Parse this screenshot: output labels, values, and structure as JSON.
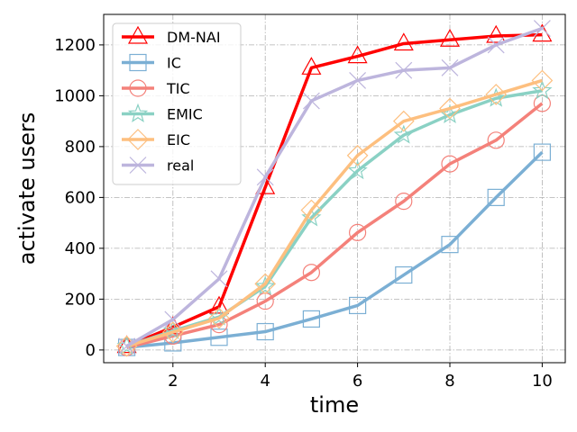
{
  "chart_data": {
    "type": "line",
    "title": "",
    "xlabel": "time",
    "ylabel": "activate users",
    "xlim": [
      0.5,
      10.5
    ],
    "ylim": [
      -50,
      1320
    ],
    "xticks": [
      2,
      4,
      6,
      8,
      10
    ],
    "yticks": [
      0,
      200,
      400,
      600,
      800,
      1000,
      1200
    ],
    "grid": true,
    "legend_position": "top-left",
    "x": [
      1,
      2,
      3,
      4,
      5,
      6,
      7,
      8,
      9,
      10
    ],
    "series": [
      {
        "name": "DM-NAI",
        "color": "#ff0000",
        "marker": "triangle",
        "values": [
          15,
          90,
          170,
          640,
          1110,
          1155,
          1205,
          1220,
          1235,
          1240
        ]
      },
      {
        "name": "IC",
        "color": "#7bafd4",
        "marker": "square",
        "values": [
          10,
          28,
          50,
          72,
          122,
          175,
          295,
          415,
          600,
          778
        ]
      },
      {
        "name": "TIC",
        "color": "#f4817a",
        "marker": "circle",
        "values": [
          10,
          55,
          100,
          192,
          305,
          462,
          585,
          732,
          825,
          970
        ]
      },
      {
        "name": "EMIC",
        "color": "#8ad1c4",
        "marker": "star",
        "values": [
          15,
          75,
          130,
          250,
          520,
          705,
          845,
          925,
          990,
          1020
        ]
      },
      {
        "name": "EIC",
        "color": "#fdbf7f",
        "marker": "diamond",
        "values": [
          15,
          70,
          125,
          260,
          550,
          765,
          900,
          950,
          1005,
          1060
        ]
      },
      {
        "name": "real",
        "color": "#bdb5dd",
        "marker": "x",
        "values": [
          15,
          120,
          280,
          680,
          980,
          1060,
          1100,
          1110,
          1200,
          1265
        ]
      }
    ]
  }
}
